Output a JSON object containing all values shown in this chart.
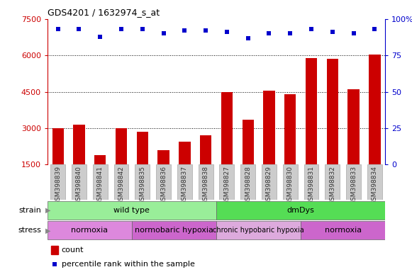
{
  "title": "GDS4201 / 1632974_s_at",
  "samples": [
    "GSM398839",
    "GSM398840",
    "GSM398841",
    "GSM398842",
    "GSM398835",
    "GSM398836",
    "GSM398837",
    "GSM398838",
    "GSM398827",
    "GSM398828",
    "GSM398829",
    "GSM398830",
    "GSM398831",
    "GSM398832",
    "GSM398833",
    "GSM398834"
  ],
  "counts": [
    3000,
    3150,
    1900,
    3000,
    2850,
    2100,
    2450,
    2700,
    4500,
    3350,
    4550,
    4400,
    5900,
    5850,
    4600,
    6050
  ],
  "percentile_ranks": [
    93,
    93,
    88,
    93,
    93,
    90,
    92,
    92,
    91,
    87,
    90,
    90,
    93,
    91,
    90,
    93
  ],
  "ylim_left": [
    1500,
    7500
  ],
  "ylim_right": [
    0,
    100
  ],
  "yticks_left": [
    1500,
    3000,
    4500,
    6000,
    7500
  ],
  "yticks_left_labels": [
    "1500",
    "3000",
    "4500",
    "6000",
    "7500"
  ],
  "yticks_right": [
    0,
    25,
    50,
    75,
    100
  ],
  "yticks_right_labels": [
    "0",
    "25",
    "50",
    "75",
    "100%"
  ],
  "bar_color": "#cc0000",
  "dot_color": "#0000cc",
  "left_axis_color": "#cc0000",
  "right_axis_color": "#0000cc",
  "strain_groups": [
    {
      "label": "wild type",
      "start": 0,
      "end": 8,
      "color": "#99ee99"
    },
    {
      "label": "dmDys",
      "start": 8,
      "end": 16,
      "color": "#55dd55"
    }
  ],
  "stress_groups": [
    {
      "label": "normoxia",
      "start": 0,
      "end": 4,
      "color": "#dd88dd"
    },
    {
      "label": "normobaric hypoxia",
      "start": 4,
      "end": 8,
      "color": "#cc66cc"
    },
    {
      "label": "chronic hypobaric hypoxia",
      "start": 8,
      "end": 12,
      "color": "#ddaadd"
    },
    {
      "label": "normoxia",
      "start": 12,
      "end": 16,
      "color": "#cc66cc"
    }
  ],
  "stress_fontsizes": [
    8,
    8,
    7,
    8
  ],
  "strain_label": "strain",
  "stress_label": "stress",
  "legend_count_color": "#cc0000",
  "legend_rank_color": "#0000cc"
}
